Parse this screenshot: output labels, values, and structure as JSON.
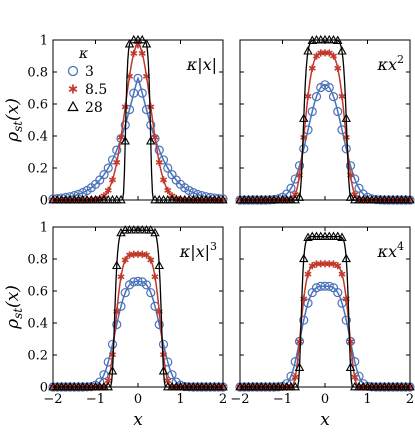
{
  "chart_data": {
    "type": "scatter",
    "ylabel": "ρ_st(x)",
    "xlabel": "x",
    "xlim": [
      -2,
      2
    ],
    "ylim": [
      0,
      1
    ],
    "xticks": [
      "−2",
      "−1",
      "0",
      "1",
      "2"
    ],
    "yticks": [
      "0",
      "0.2",
      "0.4",
      "0.6",
      "0.8",
      "1"
    ],
    "legend": {
      "title": "κ",
      "placement": "top-left of first panel",
      "entries": [
        "3",
        "8.5",
        "28"
      ]
    },
    "colors": {
      "k3": "#4a72b8",
      "k8_5": "#c0392b",
      "k28": "#000000"
    },
    "markers": {
      "k3": "circle",
      "k8_5": "asterisk",
      "k28": "triangle"
    },
    "panels": [
      {
        "label_main": "κ|x|",
        "label_sup": "",
        "exponent": 1,
        "series": [
          {
            "kappa": "3",
            "peak": 0.76
          },
          {
            "kappa": "8.5",
            "peak": 0.97
          },
          {
            "kappa": "28",
            "peak": 1.0
          }
        ]
      },
      {
        "label_main": "κx",
        "label_sup": "2",
        "exponent": 2,
        "series": [
          {
            "kappa": "3",
            "peak": 0.72
          },
          {
            "kappa": "8.5",
            "peak": 0.92
          },
          {
            "kappa": "28",
            "peak": 1.0
          }
        ]
      },
      {
        "label_main": "κ|x|",
        "label_sup": "3",
        "exponent": 3,
        "series": [
          {
            "kappa": "3",
            "peak": 0.66
          },
          {
            "kappa": "8.5",
            "peak": 0.83
          },
          {
            "kappa": "28",
            "peak": 0.98
          }
        ]
      },
      {
        "label_main": "κx",
        "label_sup": "4",
        "exponent": 4,
        "series": [
          {
            "kappa": "3",
            "peak": 0.63
          },
          {
            "kappa": "8.5",
            "peak": 0.77
          },
          {
            "kappa": "28",
            "peak": 0.94
          }
        ]
      }
    ]
  }
}
